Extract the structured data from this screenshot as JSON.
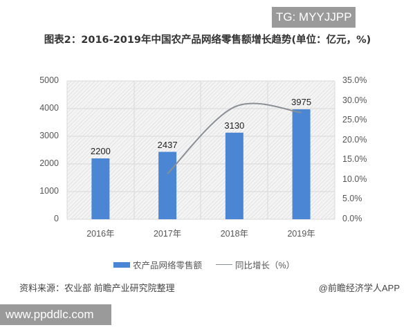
{
  "watermarks": {
    "top_tag": "TG: MYYJJPP",
    "bottom_tag": "www.ppddlc.com"
  },
  "title": "图表2：2016-2019年中国农产品网络零售额增长趋势(单位：亿元，%)",
  "legend": {
    "bar_label": "农产品网络零售额",
    "line_label": "同比增长（%）"
  },
  "footer": {
    "source": "资料来源：农业部 前瞻产业研究院整理",
    "credit": "@前瞻经济学人APP"
  },
  "colors": {
    "bar": "#4a86d4",
    "line": "#8a8f96",
    "grid": "#d9d9d9"
  },
  "axes": {
    "left_ticks": [
      "5000",
      "4000",
      "3000",
      "2000",
      "1000",
      "0"
    ],
    "right_ticks": [
      "35.0%",
      "30.0%",
      "25.0%",
      "20.0%",
      "15.0%",
      "10.0%",
      "5.0%",
      "0.0%"
    ],
    "x_ticks": [
      "2016年",
      "2017年",
      "2018年",
      "2019年"
    ]
  },
  "bar_labels": [
    "2200",
    "2437",
    "3130",
    "3975"
  ],
  "chart_data": {
    "type": "bar",
    "title": "图表2：2016-2019年中国农产品网络零售额增长趋势(单位：亿元，%)",
    "categories": [
      "2016年",
      "2017年",
      "2018年",
      "2019年"
    ],
    "series": [
      {
        "name": "农产品网络零售额",
        "type": "bar",
        "axis": "left",
        "unit": "亿元",
        "values": [
          2200,
          2437,
          3130,
          3975
        ]
      },
      {
        "name": "同比增长（%）",
        "type": "line",
        "axis": "right",
        "unit": "%",
        "values": [
          null,
          11.5,
          28.4,
          27.0
        ],
        "note": "values estimated from curve position; no data labels shown"
      }
    ],
    "xlabel": "",
    "ylabel_left": "",
    "ylabel_right": "",
    "ylim_left": [
      0,
      5000
    ],
    "ylim_right": [
      0,
      35
    ],
    "grid": true,
    "legend_position": "bottom"
  }
}
